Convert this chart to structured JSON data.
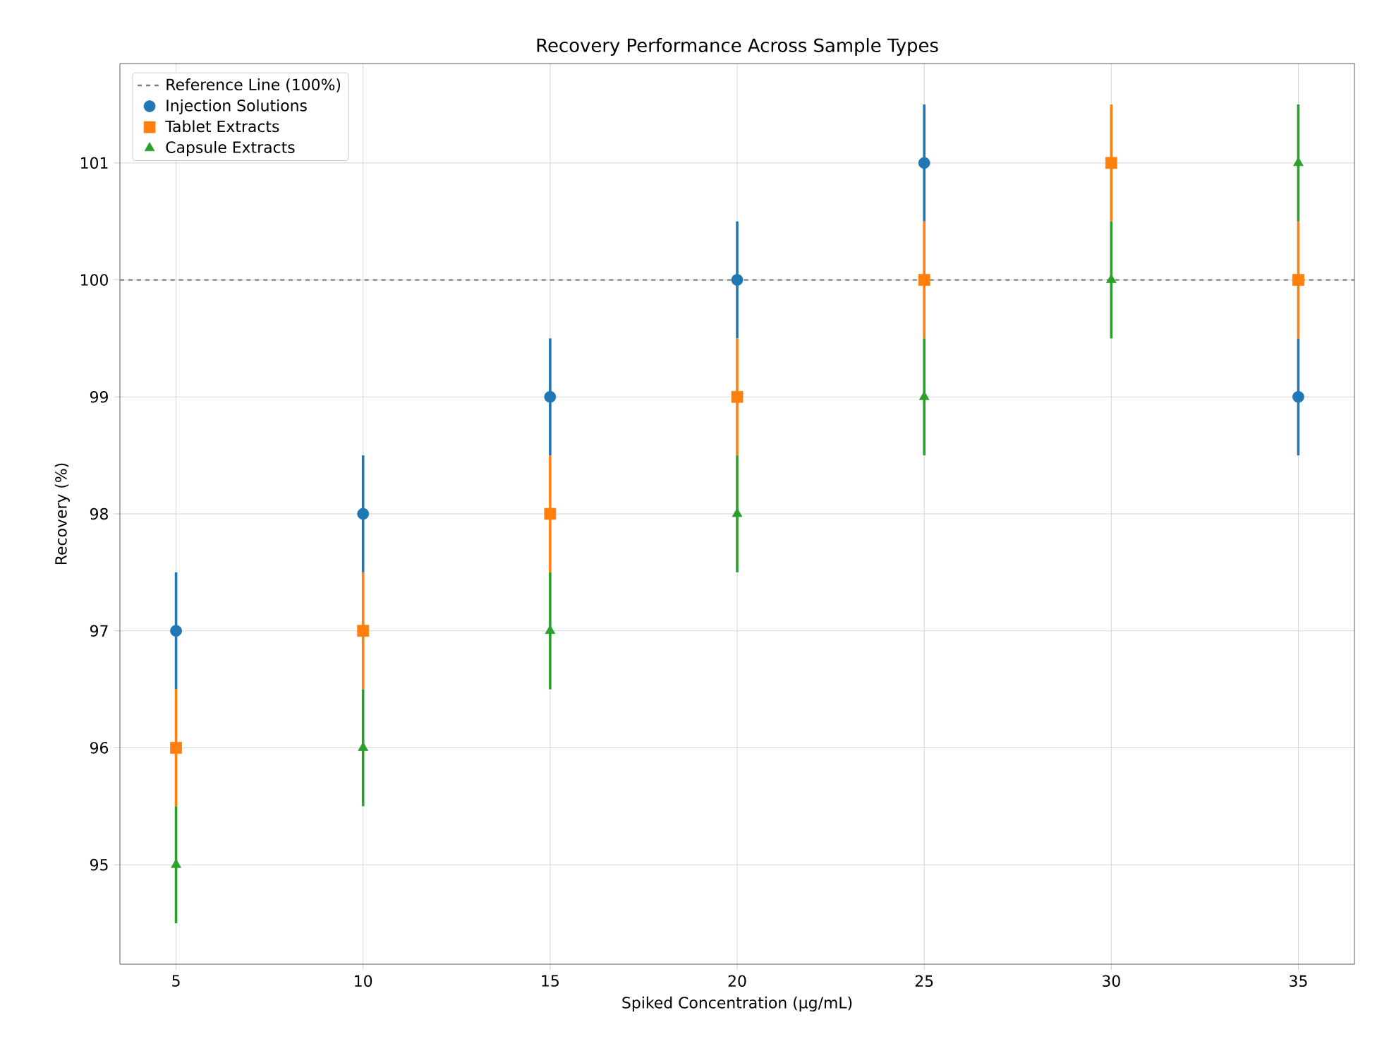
{
  "chart_data": {
    "type": "scatter",
    "title": "Recovery Performance Across Sample Types",
    "xlabel": "Spiked Concentration (µg/mL)",
    "ylabel": "Recovery (%)",
    "x": [
      5,
      10,
      15,
      20,
      25,
      30,
      35
    ],
    "series": [
      {
        "name": "Injection Solutions",
        "color": "#1f77b4",
        "marker": "circle",
        "values": [
          97,
          98,
          99,
          100,
          101,
          null,
          99
        ],
        "errors": [
          0.5,
          0.5,
          0.5,
          0.5,
          0.5,
          null,
          0.5
        ]
      },
      {
        "name": "Tablet Extracts",
        "color": "#ff7f0e",
        "marker": "square",
        "values": [
          96,
          97,
          98,
          99,
          100,
          101,
          100
        ],
        "errors": [
          0.5,
          0.5,
          0.5,
          0.5,
          0.5,
          0.5,
          0.5
        ]
      },
      {
        "name": "Capsule Extracts",
        "color": "#2ca02c",
        "marker": "triangle",
        "values": [
          95,
          96,
          97,
          98,
          99,
          100,
          101
        ],
        "errors": [
          0.5,
          0.5,
          0.5,
          0.5,
          0.5,
          0.5,
          0.5
        ]
      }
    ],
    "ref_lines": [
      {
        "axis": "y",
        "value": 100,
        "label": "Reference Line (100%)",
        "color": "#808080",
        "line_style": "dashed"
      }
    ],
    "xlim": [
      3.5,
      36.5
    ],
    "ylim": [
      94.15,
      101.85
    ],
    "xticks": [
      5,
      10,
      15,
      20,
      25,
      30,
      35
    ],
    "yticks": [
      95,
      96,
      97,
      98,
      99,
      100,
      101
    ],
    "grid": true,
    "legend": "top left"
  }
}
